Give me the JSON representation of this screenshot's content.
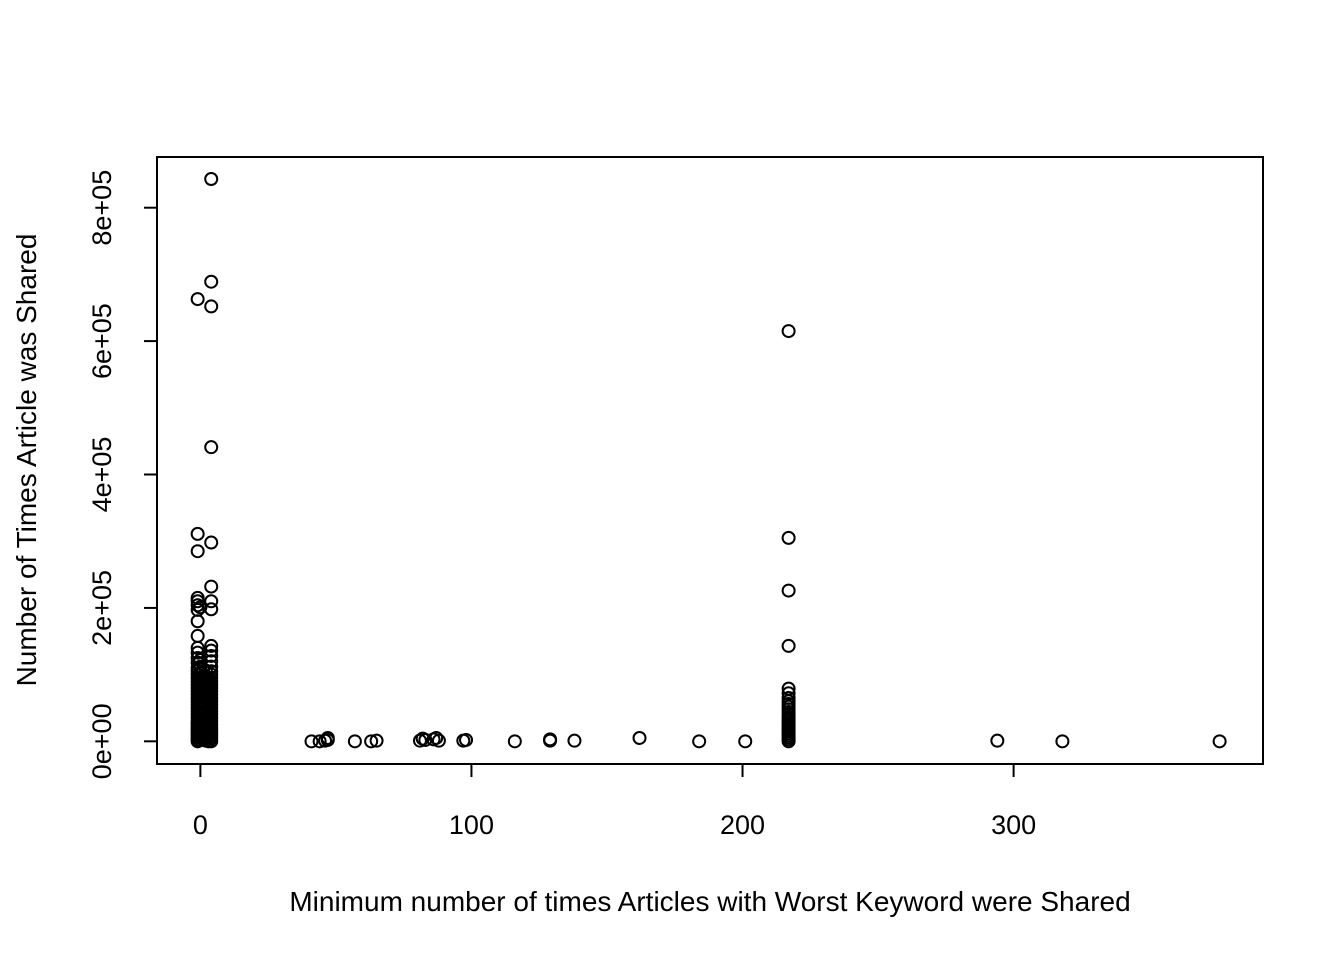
{
  "chart_data": {
    "type": "scatter",
    "title": "",
    "xlabel": "Minimum number of times Articles with Worst Keyword were Shared",
    "ylabel": "Number of Times Article was Shared",
    "xlim": [
      -16,
      392
    ],
    "ylim": [
      -34000,
      876000
    ],
    "x_ticks": [
      {
        "value": 0,
        "label": "0"
      },
      {
        "value": 100,
        "label": "100"
      },
      {
        "value": 200,
        "label": "200"
      },
      {
        "value": 300,
        "label": "300"
      }
    ],
    "y_ticks": [
      {
        "value": 0,
        "label": "0e+00"
      },
      {
        "value": 200000,
        "label": "2e+05"
      },
      {
        "value": 400000,
        "label": "4e+05"
      },
      {
        "value": 600000,
        "label": "6e+05"
      },
      {
        "value": 800000,
        "label": "8e+05"
      }
    ],
    "grid": false,
    "marker": "open-circle",
    "series": [
      {
        "points": [
          [
            -1,
            0
          ],
          [
            -1,
            3000
          ],
          [
            -1,
            6000
          ],
          [
            -1,
            9000
          ],
          [
            -1,
            12000
          ],
          [
            -1,
            15000
          ],
          [
            -1,
            18000
          ],
          [
            -1,
            21000
          ],
          [
            -1,
            24000
          ],
          [
            -1,
            27000
          ],
          [
            -1,
            30000
          ],
          [
            -1,
            35000
          ],
          [
            -1,
            40000
          ],
          [
            -1,
            45000
          ],
          [
            -1,
            50000
          ],
          [
            -1,
            55000
          ],
          [
            -1,
            60000
          ],
          [
            -1,
            65000
          ],
          [
            -1,
            70000
          ],
          [
            -1,
            75000
          ],
          [
            -1,
            80000
          ],
          [
            -1,
            85000
          ],
          [
            -1,
            90000
          ],
          [
            -1,
            95000
          ],
          [
            -1,
            100000
          ],
          [
            -1,
            105000
          ],
          [
            -1,
            110000
          ],
          [
            -1,
            118000
          ],
          [
            -1,
            125000
          ],
          [
            -1,
            133000
          ],
          [
            -1,
            140000
          ],
          [
            -1,
            158000
          ],
          [
            -1,
            180000
          ],
          [
            -1,
            197000
          ],
          [
            -1,
            204000
          ],
          [
            -1,
            210000
          ],
          [
            -1,
            215000
          ],
          [
            -1,
            285000
          ],
          [
            -1,
            311000
          ],
          [
            -1,
            663000
          ],
          [
            0,
            2000
          ],
          [
            0,
            8000
          ],
          [
            0,
            16000
          ],
          [
            0,
            24000
          ],
          [
            0,
            32000
          ],
          [
            0,
            42000
          ],
          [
            0,
            52000
          ],
          [
            0,
            62000
          ],
          [
            0,
            72000
          ],
          [
            0,
            82000
          ],
          [
            0,
            92000
          ],
          [
            0,
            102000
          ],
          [
            0,
            112000
          ],
          [
            0,
            122000
          ],
          [
            0,
            201000
          ],
          [
            1,
            4000
          ],
          [
            1,
            11000
          ],
          [
            1,
            19000
          ],
          [
            1,
            28000
          ],
          [
            1,
            38000
          ],
          [
            1,
            48000
          ],
          [
            1,
            58000
          ],
          [
            1,
            68000
          ],
          [
            1,
            78000
          ],
          [
            1,
            88000
          ],
          [
            1,
            98000
          ],
          [
            1,
            108000
          ],
          [
            2,
            1000
          ],
          [
            2,
            6000
          ],
          [
            2,
            13000
          ],
          [
            2,
            22000
          ],
          [
            2,
            33000
          ],
          [
            2,
            44000
          ],
          [
            2,
            56000
          ],
          [
            2,
            66000
          ],
          [
            2,
            76000
          ],
          [
            2,
            86000
          ],
          [
            2,
            96000
          ],
          [
            2,
            106000
          ],
          [
            3,
            0
          ],
          [
            3,
            5000
          ],
          [
            3,
            10000
          ],
          [
            3,
            15000
          ],
          [
            3,
            20000
          ],
          [
            3,
            25000
          ],
          [
            3,
            30000
          ],
          [
            3,
            35000
          ],
          [
            3,
            40000
          ],
          [
            3,
            45000
          ],
          [
            3,
            50000
          ],
          [
            3,
            55000
          ],
          [
            3,
            60000
          ],
          [
            3,
            65000
          ],
          [
            3,
            70000
          ],
          [
            3,
            75000
          ],
          [
            3,
            80000
          ],
          [
            3,
            85000
          ],
          [
            3,
            90000
          ],
          [
            3,
            95000
          ],
          [
            4,
            0
          ],
          [
            4,
            4000
          ],
          [
            4,
            8000
          ],
          [
            4,
            12000
          ],
          [
            4,
            16000
          ],
          [
            4,
            20000
          ],
          [
            4,
            25000
          ],
          [
            4,
            30000
          ],
          [
            4,
            35000
          ],
          [
            4,
            40000
          ],
          [
            4,
            45000
          ],
          [
            4,
            50000
          ],
          [
            4,
            55000
          ],
          [
            4,
            60000
          ],
          [
            4,
            65000
          ],
          [
            4,
            70000
          ],
          [
            4,
            75000
          ],
          [
            4,
            80000
          ],
          [
            4,
            85000
          ],
          [
            4,
            90000
          ],
          [
            4,
            95000
          ],
          [
            4,
            100000
          ],
          [
            4,
            105000
          ],
          [
            4,
            112000
          ],
          [
            4,
            120000
          ],
          [
            4,
            128000
          ],
          [
            4,
            136000
          ],
          [
            4,
            143000
          ],
          [
            4,
            198000
          ],
          [
            4,
            210000
          ],
          [
            4,
            232000
          ],
          [
            4,
            298000
          ],
          [
            4,
            441000
          ],
          [
            4,
            652000
          ],
          [
            4,
            689000
          ],
          [
            4,
            843000
          ],
          [
            41,
            0
          ],
          [
            44,
            0
          ],
          [
            46,
            1000
          ],
          [
            47,
            2000
          ],
          [
            47,
            5000
          ],
          [
            57,
            0
          ],
          [
            63,
            0
          ],
          [
            65,
            1000
          ],
          [
            81,
            1000
          ],
          [
            82,
            4000
          ],
          [
            83,
            2000
          ],
          [
            86,
            3000
          ],
          [
            87,
            5000
          ],
          [
            88,
            1000
          ],
          [
            97,
            1000
          ],
          [
            98,
            2000
          ],
          [
            116,
            0
          ],
          [
            129,
            1000
          ],
          [
            129,
            3000
          ],
          [
            138,
            1000
          ],
          [
            162,
            5000
          ],
          [
            184,
            0
          ],
          [
            201,
            0
          ],
          [
            217,
            0
          ],
          [
            217,
            3000
          ],
          [
            217,
            6000
          ],
          [
            217,
            9000
          ],
          [
            217,
            12000
          ],
          [
            217,
            15000
          ],
          [
            217,
            18000
          ],
          [
            217,
            21000
          ],
          [
            217,
            24000
          ],
          [
            217,
            27000
          ],
          [
            217,
            30000
          ],
          [
            217,
            33000
          ],
          [
            217,
            36000
          ],
          [
            217,
            40000
          ],
          [
            217,
            44000
          ],
          [
            217,
            48000
          ],
          [
            217,
            52000
          ],
          [
            217,
            56000
          ],
          [
            217,
            60000
          ],
          [
            217,
            65000
          ],
          [
            217,
            72000
          ],
          [
            217,
            79000
          ],
          [
            217,
            143000
          ],
          [
            217,
            226000
          ],
          [
            217,
            305000
          ],
          [
            217,
            615000
          ],
          [
            294,
            1000
          ],
          [
            318,
            0
          ],
          [
            376,
            0
          ]
        ]
      }
    ]
  }
}
